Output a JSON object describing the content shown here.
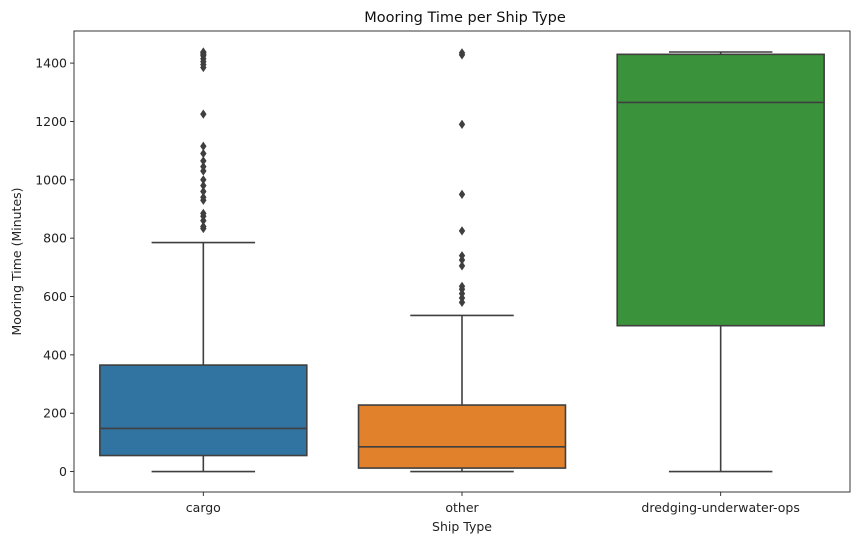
{
  "chart_data": {
    "type": "box",
    "title": "Mooring Time per Ship Type",
    "xlabel": "Ship Type",
    "ylabel": "Mooring Time (Minutes)",
    "ylim": [
      -70,
      1510
    ],
    "yticks": [
      0,
      200,
      400,
      600,
      800,
      1000,
      1200,
      1400
    ],
    "grid": false,
    "categories": [
      "cargo",
      "other",
      "dredging-underwater-ops"
    ],
    "colors": [
      "#3274a1",
      "#e1812c",
      "#3a923a"
    ],
    "line_color": "#3f3f3f",
    "boxes": [
      {
        "category": "cargo",
        "whisker_low": 0,
        "q1": 55,
        "median": 148,
        "q3": 365,
        "whisker_high": 785,
        "outliers": [
          833,
          840,
          860,
          875,
          885,
          930,
          940,
          960,
          980,
          1000,
          1030,
          1045,
          1065,
          1090,
          1115,
          1225,
          1385,
          1395,
          1405,
          1415,
          1425,
          1430,
          1435,
          1438
        ]
      },
      {
        "category": "other",
        "whisker_low": 0,
        "q1": 12,
        "median": 85,
        "q3": 228,
        "whisker_high": 535,
        "outliers": [
          580,
          595,
          610,
          625,
          635,
          705,
          725,
          740,
          825,
          950,
          1190,
          1428,
          1435
        ]
      },
      {
        "category": "dredging-underwater-ops",
        "whisker_low": 0,
        "q1": 500,
        "median": 1265,
        "q3": 1430,
        "whisker_high": 1438,
        "outliers": []
      }
    ]
  }
}
